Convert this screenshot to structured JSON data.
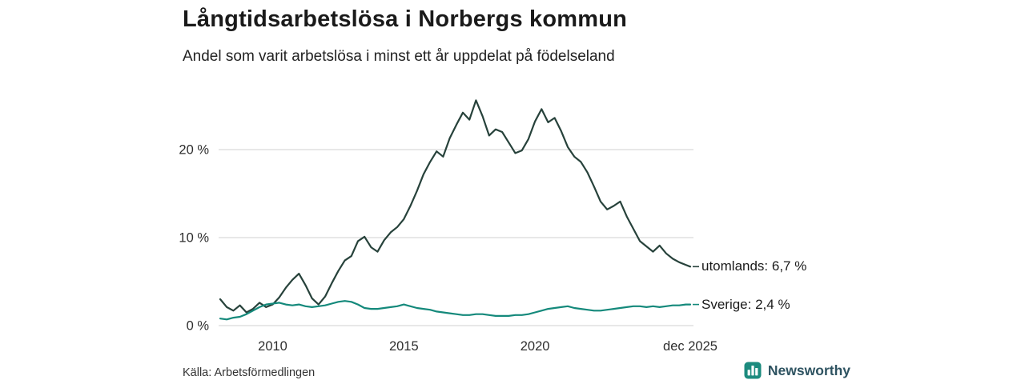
{
  "footer": {
    "source": "Källa: Arbetsförmedlingen",
    "brand": "Newsworthy"
  },
  "chart_data": {
    "type": "line",
    "title": "Långtidsarbetslösa i Norbergs kommun",
    "subtitle": "Andel som varit arbetslösa i minst ett år uppdelat på födelseland",
    "xlabel": "",
    "ylabel": "",
    "x_range": [
      2008,
      2025.92
    ],
    "y_range": [
      0,
      27
    ],
    "grid": "horizontal-only",
    "legend_position": "right-end-labels",
    "colors": {
      "grid": "#d9d9d9",
      "axis_text": "#2e2e2e",
      "utomlands_line": "#27423b",
      "sverige_line": "#14897b",
      "brand_teal": "#1c8b7e",
      "brand_text": "#2e5361"
    },
    "y_ticks": [
      {
        "value": 0,
        "label": "0 %"
      },
      {
        "value": 10,
        "label": "10 %"
      },
      {
        "value": 20,
        "label": "20 %"
      }
    ],
    "x_ticks": [
      {
        "value": 2010,
        "label": "2010"
      },
      {
        "value": 2015,
        "label": "2015"
      },
      {
        "value": 2020,
        "label": "2020"
      },
      {
        "value": 2025.92,
        "label": "dec 2025"
      }
    ],
    "x": [
      2008,
      2008.25,
      2008.5,
      2008.75,
      2009,
      2009.25,
      2009.5,
      2009.75,
      2010,
      2010.25,
      2010.5,
      2010.75,
      2011,
      2011.25,
      2011.5,
      2011.75,
      2012,
      2012.25,
      2012.5,
      2012.75,
      2013,
      2013.25,
      2013.5,
      2013.75,
      2014,
      2014.25,
      2014.5,
      2014.75,
      2015,
      2015.25,
      2015.5,
      2015.75,
      2016,
      2016.25,
      2016.5,
      2016.75,
      2017,
      2017.25,
      2017.5,
      2017.75,
      2018,
      2018.25,
      2018.5,
      2018.75,
      2019,
      2019.25,
      2019.5,
      2019.75,
      2020,
      2020.25,
      2020.5,
      2020.75,
      2021,
      2021.25,
      2021.5,
      2021.75,
      2022,
      2022.25,
      2022.5,
      2022.75,
      2023,
      2023.25,
      2023.5,
      2023.75,
      2024,
      2024.25,
      2024.5,
      2024.75,
      2025,
      2025.25,
      2025.5,
      2025.75,
      2025.92
    ],
    "series": [
      {
        "name": "utomlands",
        "end_label": "utomlands: 6,7 %",
        "end_value_label": "6,7 %",
        "color": "#27423b",
        "values": [
          3.0,
          2.1,
          1.7,
          2.3,
          1.5,
          1.9,
          2.6,
          2.1,
          2.4,
          3.2,
          4.3,
          5.2,
          5.9,
          4.6,
          3.1,
          2.4,
          3.3,
          4.8,
          6.2,
          7.4,
          7.9,
          9.6,
          10.1,
          8.9,
          8.4,
          9.7,
          10.6,
          11.2,
          12.1,
          13.6,
          15.3,
          17.2,
          18.6,
          19.8,
          19.2,
          21.3,
          22.8,
          24.2,
          23.4,
          25.6,
          23.8,
          21.6,
          22.3,
          22.0,
          20.8,
          19.6,
          19.9,
          21.2,
          23.2,
          24.6,
          23.1,
          23.6,
          22.1,
          20.3,
          19.2,
          18.6,
          17.4,
          15.8,
          14.1,
          13.2,
          13.6,
          14.1,
          12.4,
          11.0,
          9.6,
          9.0,
          8.4,
          9.1,
          8.2,
          7.6,
          7.2,
          6.9,
          6.7
        ]
      },
      {
        "name": "Sverige",
        "end_label": "Sverige: 2,4 %",
        "end_value_label": "2,4 %",
        "color": "#14897b",
        "values": [
          0.8,
          0.7,
          0.9,
          1.0,
          1.3,
          1.7,
          2.1,
          2.4,
          2.5,
          2.6,
          2.4,
          2.3,
          2.4,
          2.2,
          2.1,
          2.2,
          2.3,
          2.5,
          2.7,
          2.8,
          2.7,
          2.4,
          2.0,
          1.9,
          1.9,
          2.0,
          2.1,
          2.2,
          2.4,
          2.2,
          2.0,
          1.9,
          1.8,
          1.6,
          1.5,
          1.4,
          1.3,
          1.2,
          1.2,
          1.3,
          1.3,
          1.2,
          1.1,
          1.1,
          1.1,
          1.2,
          1.2,
          1.3,
          1.5,
          1.7,
          1.9,
          2.0,
          2.1,
          2.2,
          2.0,
          1.9,
          1.8,
          1.7,
          1.7,
          1.8,
          1.9,
          2.0,
          2.1,
          2.2,
          2.2,
          2.1,
          2.2,
          2.1,
          2.2,
          2.3,
          2.3,
          2.4,
          2.4
        ]
      }
    ]
  }
}
